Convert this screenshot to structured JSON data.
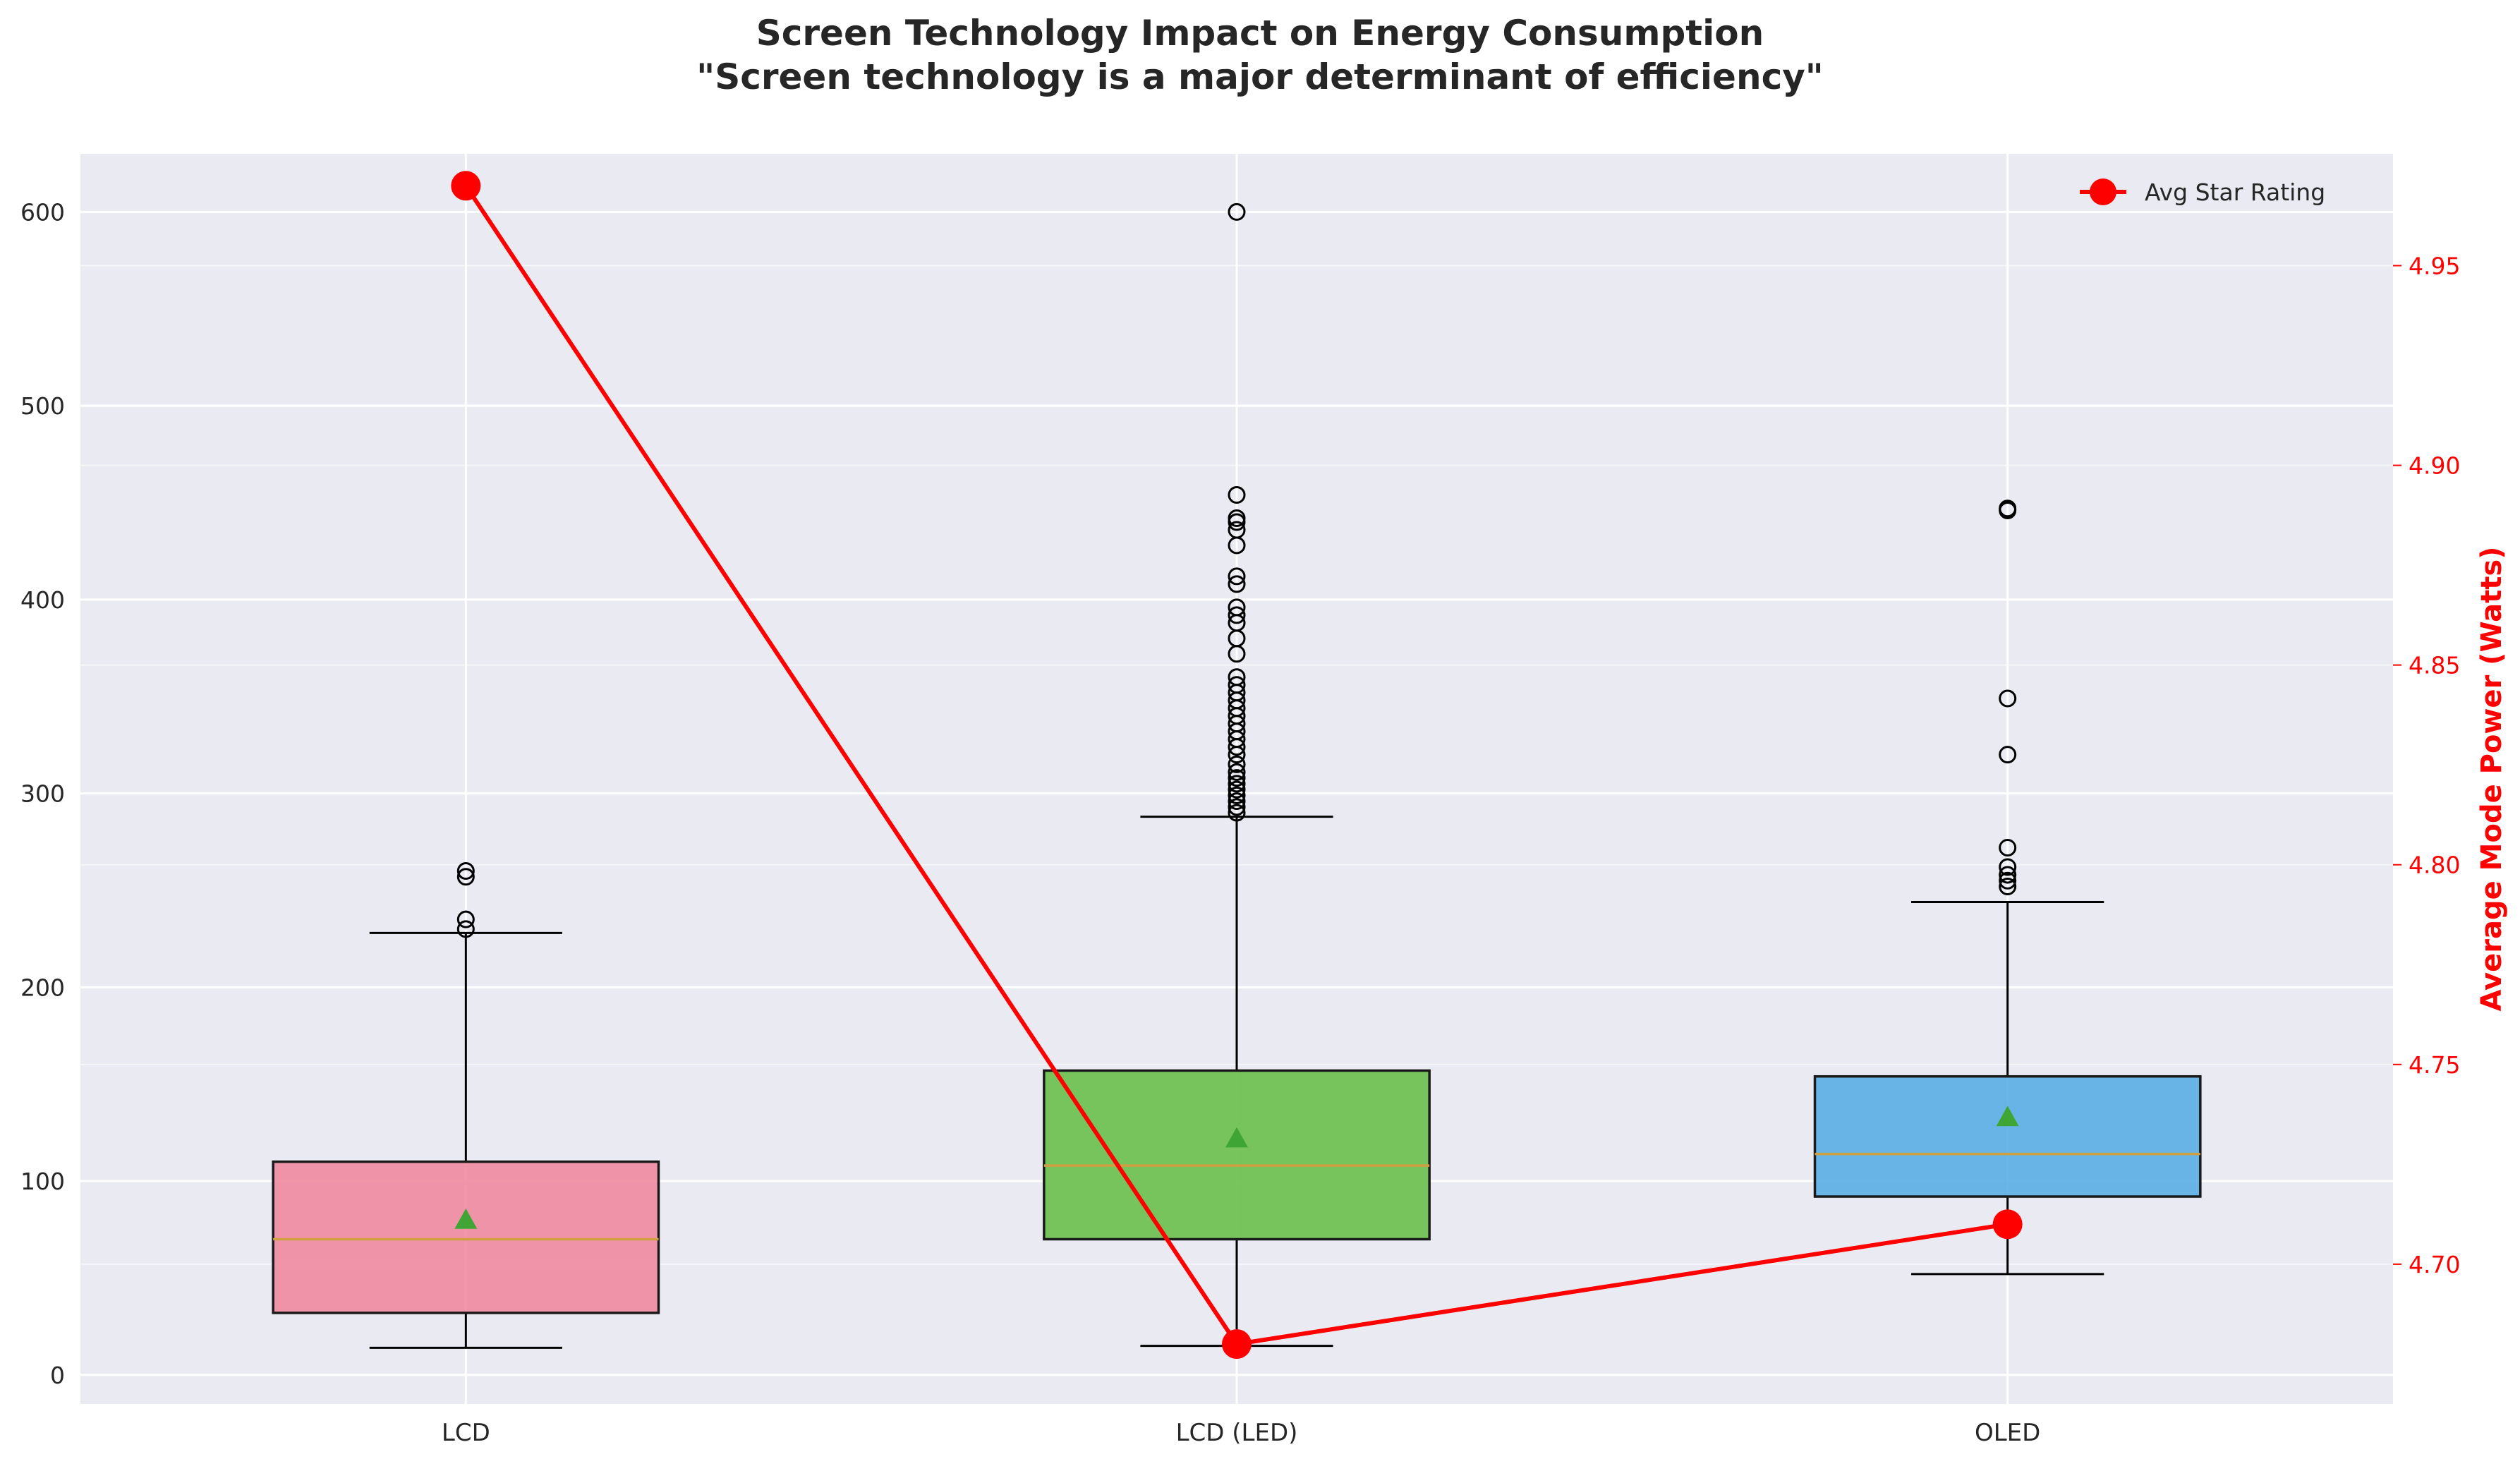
{
  "chart_data": {
    "type": "box",
    "title": "Screen Technology Impact on Energy Consumption",
    "subtitle": "\"Screen technology is a major determinant of efficiency\"",
    "xlabel": "",
    "ylabel_left": "",
    "ylabel_right": "Average Mode Power (Watts)",
    "categories": [
      "LCD",
      "LCD (LED)",
      "OLED"
    ],
    "ylim_left": [
      -15,
      630
    ],
    "ylim_right": [
      4.665,
      4.978
    ],
    "yticks_left": [
      0,
      100,
      200,
      300,
      400,
      500,
      600
    ],
    "yticks_right": [
      "4.70",
      "4.75",
      "4.80",
      "4.85",
      "4.90",
      "4.95"
    ],
    "grid": true,
    "legend_position": "top-right",
    "box_series": [
      {
        "category": "LCD",
        "color": "#f08aa0",
        "whisker_low": 14,
        "q1": 32,
        "median": 70,
        "q3": 110,
        "whisker_high": 228,
        "mean": 80,
        "outliers": [
          230,
          235,
          257,
          260
        ]
      },
      {
        "category": "LCD (LED)",
        "color": "#6abf4b",
        "whisker_low": 15,
        "q1": 70,
        "median": 108,
        "q3": 157,
        "whisker_high": 288,
        "mean": 122,
        "outliers": [
          290,
          293,
          296,
          299,
          302,
          305,
          308,
          311,
          315,
          320,
          324,
          328,
          332,
          336,
          340,
          344,
          348,
          352,
          356,
          360,
          372,
          380,
          388,
          392,
          396,
          408,
          412,
          428,
          436,
          440,
          442,
          454,
          600
        ]
      },
      {
        "category": "OLED",
        "color": "#5aaee6",
        "whisker_low": 52,
        "q1": 92,
        "median": 114,
        "q3": 154,
        "whisker_high": 244,
        "mean": 133,
        "outliers": [
          252,
          255,
          258,
          262,
          272,
          320,
          349,
          446,
          447
        ]
      }
    ],
    "line_series": {
      "name": "Avg Star Rating",
      "color": "#ff0000",
      "values": [
        4.97,
        4.68,
        4.71
      ]
    }
  }
}
